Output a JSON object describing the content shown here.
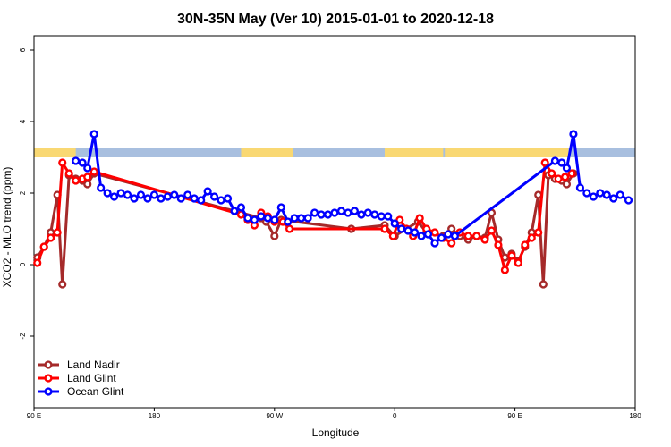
{
  "chart_data": {
    "type": "line",
    "title": "30N-35N May (Ver 10)   2015-01-01 to 2020-12-18",
    "xlabel": "Longitude",
    "ylabel": "XCO2 - MLO trend (ppm)",
    "xlim": [
      0,
      720
    ],
    "ylim": [
      -4,
      6.4
    ],
    "x_ticks": [
      {
        "value": 0,
        "label": "90 E"
      },
      {
        "value": 144,
        "label": "180"
      },
      {
        "value": 288,
        "label": "90 W"
      },
      {
        "value": 432,
        "label": "0"
      },
      {
        "value": 576,
        "label": "90 E"
      },
      {
        "value": 720,
        "label": "180"
      }
    ],
    "y_ticks": [
      {
        "value": -2,
        "label": "-2"
      },
      {
        "value": 0,
        "label": "0"
      },
      {
        "value": 2,
        "label": "2"
      },
      {
        "value": 4,
        "label": "4"
      },
      {
        "value": 6,
        "label": "6"
      }
    ],
    "land_ocean_band": {
      "y_range": [
        3.0,
        3.25
      ],
      "ocean_color": "#a8bfdf",
      "land_color": "#f9d873",
      "land_segments": [
        [
          0,
          50
        ],
        [
          248,
          310
        ],
        [
          420,
          490
        ],
        [
          492,
          640
        ]
      ]
    },
    "legend_position": "bottom-left",
    "series": [
      {
        "name": "Land Nadir",
        "color": "#a52a2a",
        "points": [
          [
            4,
            0.2
          ],
          [
            12,
            0.5
          ],
          [
            20,
            0.9
          ],
          [
            28,
            1.95
          ],
          [
            34,
            -0.55
          ],
          [
            42,
            2.5
          ],
          [
            50,
            2.4
          ],
          [
            58,
            2.35
          ],
          [
            64,
            2.25
          ],
          [
            72,
            2.55
          ],
          [
            272,
            1.3
          ],
          [
            278,
            1.2
          ],
          [
            288,
            0.8
          ],
          [
            296,
            1.25
          ],
          [
            380,
            1.0
          ],
          [
            420,
            1.1
          ],
          [
            432,
            0.8
          ],
          [
            460,
            1.2
          ],
          [
            470,
            0.9
          ],
          [
            490,
            0.8
          ],
          [
            500,
            1.0
          ],
          [
            510,
            0.8
          ],
          [
            520,
            0.7
          ],
          [
            530,
            0.8
          ],
          [
            540,
            0.75
          ],
          [
            548,
            1.45
          ],
          [
            556,
            0.7
          ],
          [
            564,
            0.2
          ],
          [
            572,
            0.3
          ],
          [
            580,
            0.1
          ],
          [
            588,
            0.5
          ],
          [
            596,
            0.9
          ],
          [
            604,
            1.95
          ],
          [
            610,
            -0.55
          ],
          [
            616,
            2.5
          ],
          [
            624,
            2.4
          ],
          [
            632,
            2.35
          ],
          [
            638,
            2.25
          ],
          [
            646,
            2.55
          ]
        ]
      },
      {
        "name": "Land Glint",
        "color": "#ff0000",
        "points": [
          [
            4,
            0.05
          ],
          [
            12,
            0.5
          ],
          [
            20,
            0.75
          ],
          [
            28,
            0.9
          ],
          [
            34,
            2.85
          ],
          [
            42,
            2.55
          ],
          [
            50,
            2.35
          ],
          [
            58,
            2.4
          ],
          [
            64,
            2.45
          ],
          [
            72,
            2.6
          ],
          [
            248,
            1.4
          ],
          [
            256,
            1.25
          ],
          [
            264,
            1.1
          ],
          [
            272,
            1.45
          ],
          [
            280,
            1.35
          ],
          [
            288,
            1.2
          ],
          [
            298,
            1.2
          ],
          [
            306,
            1.0
          ],
          [
            420,
            1.0
          ],
          [
            430,
            0.8
          ],
          [
            438,
            1.25
          ],
          [
            446,
            1.0
          ],
          [
            454,
            0.8
          ],
          [
            462,
            1.3
          ],
          [
            470,
            1.0
          ],
          [
            480,
            0.9
          ],
          [
            490,
            0.75
          ],
          [
            500,
            0.6
          ],
          [
            510,
            0.9
          ],
          [
            520,
            0.8
          ],
          [
            530,
            0.8
          ],
          [
            540,
            0.7
          ],
          [
            548,
            0.95
          ],
          [
            556,
            0.55
          ],
          [
            564,
            -0.15
          ],
          [
            572,
            0.25
          ],
          [
            580,
            0.05
          ],
          [
            588,
            0.55
          ],
          [
            596,
            0.75
          ],
          [
            604,
            0.9
          ],
          [
            612,
            2.85
          ],
          [
            620,
            2.55
          ],
          [
            628,
            2.4
          ],
          [
            636,
            2.45
          ],
          [
            644,
            2.55
          ]
        ]
      },
      {
        "name": "Ocean Glint",
        "color": "#0000ff",
        "points": [
          [
            50,
            2.9
          ],
          [
            58,
            2.85
          ],
          [
            64,
            2.7
          ],
          [
            72,
            3.65
          ],
          [
            80,
            2.15
          ],
          [
            88,
            2.0
          ],
          [
            96,
            1.9
          ],
          [
            104,
            2.0
          ],
          [
            112,
            1.95
          ],
          [
            120,
            1.85
          ],
          [
            128,
            1.95
          ],
          [
            136,
            1.85
          ],
          [
            144,
            1.95
          ],
          [
            152,
            1.85
          ],
          [
            160,
            1.9
          ],
          [
            168,
            1.95
          ],
          [
            176,
            1.85
          ],
          [
            184,
            1.95
          ],
          [
            192,
            1.85
          ],
          [
            200,
            1.8
          ],
          [
            208,
            2.05
          ],
          [
            216,
            1.9
          ],
          [
            224,
            1.8
          ],
          [
            232,
            1.85
          ],
          [
            240,
            1.5
          ],
          [
            248,
            1.6
          ],
          [
            256,
            1.3
          ],
          [
            264,
            1.25
          ],
          [
            272,
            1.35
          ],
          [
            280,
            1.3
          ],
          [
            288,
            1.25
          ],
          [
            296,
            1.6
          ],
          [
            304,
            1.2
          ],
          [
            312,
            1.3
          ],
          [
            320,
            1.3
          ],
          [
            328,
            1.3
          ],
          [
            336,
            1.45
          ],
          [
            344,
            1.4
          ],
          [
            352,
            1.4
          ],
          [
            360,
            1.45
          ],
          [
            368,
            1.5
          ],
          [
            376,
            1.45
          ],
          [
            384,
            1.5
          ],
          [
            392,
            1.4
          ],
          [
            400,
            1.45
          ],
          [
            408,
            1.4
          ],
          [
            416,
            1.35
          ],
          [
            424,
            1.35
          ],
          [
            432,
            1.15
          ],
          [
            440,
            1.0
          ],
          [
            448,
            0.95
          ],
          [
            456,
            0.9
          ],
          [
            464,
            0.8
          ],
          [
            472,
            0.85
          ],
          [
            480,
            0.6
          ],
          [
            488,
            0.75
          ],
          [
            496,
            0.85
          ],
          [
            504,
            0.8
          ],
          [
            624,
            2.9
          ],
          [
            632,
            2.85
          ],
          [
            638,
            2.7
          ],
          [
            646,
            3.65
          ],
          [
            654,
            2.15
          ],
          [
            662,
            2.0
          ],
          [
            670,
            1.9
          ],
          [
            678,
            2.0
          ],
          [
            686,
            1.95
          ],
          [
            694,
            1.85
          ],
          [
            702,
            1.95
          ],
          [
            712,
            1.8
          ]
        ]
      }
    ]
  }
}
